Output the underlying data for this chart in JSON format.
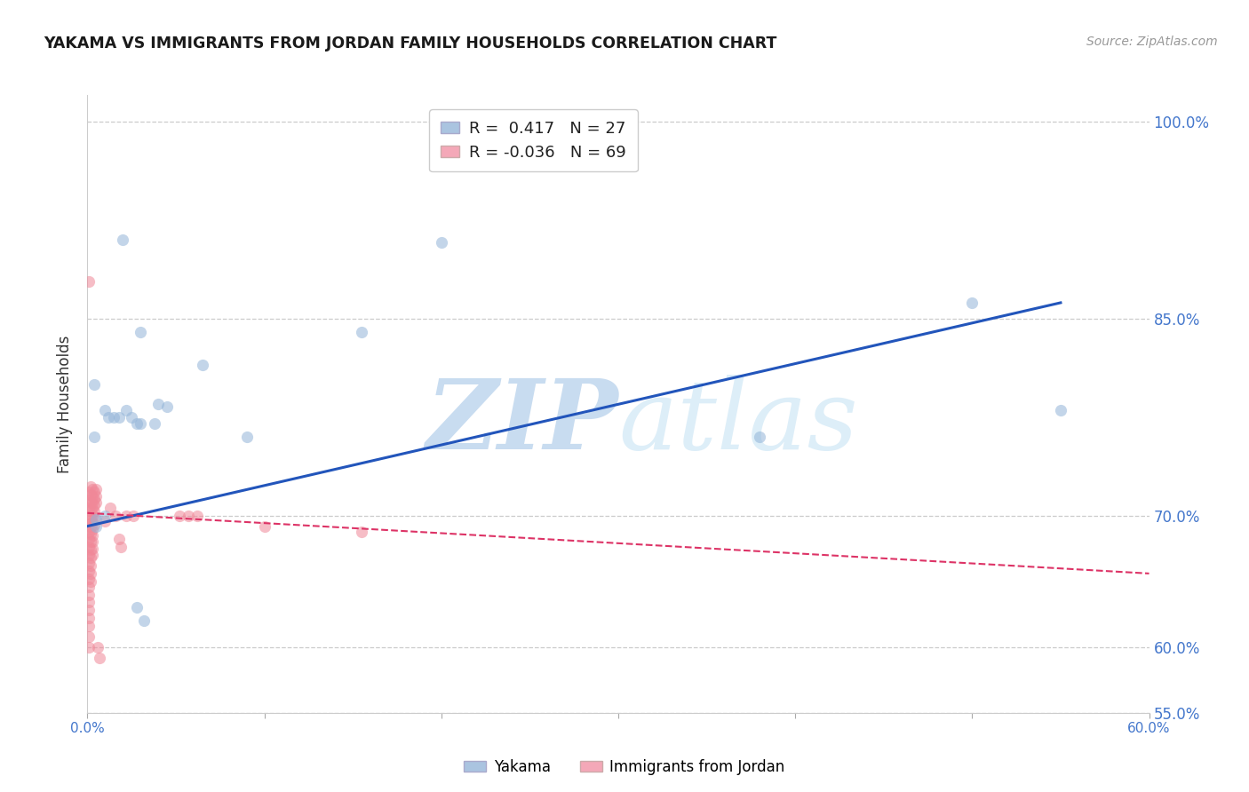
{
  "title": "YAKAMA VS IMMIGRANTS FROM JORDAN FAMILY HOUSEHOLDS CORRELATION CHART",
  "source": "Source: ZipAtlas.com",
  "ylabel": "Family Households",
  "xlim": [
    0.0,
    0.6
  ],
  "ylim": [
    0.58,
    1.02
  ],
  "y_tick_vals": [
    0.55,
    0.6,
    0.7,
    0.85,
    1.0
  ],
  "y_tick_labels": [
    "55.0%",
    "60.0%",
    "70.0%",
    "85.0%",
    "100.0%"
  ],
  "blue_scatter": [
    [
      0.004,
      0.8
    ],
    [
      0.004,
      0.76
    ],
    [
      0.01,
      0.78
    ],
    [
      0.012,
      0.775
    ],
    [
      0.015,
      0.775
    ],
    [
      0.018,
      0.775
    ],
    [
      0.022,
      0.78
    ],
    [
      0.025,
      0.775
    ],
    [
      0.028,
      0.77
    ],
    [
      0.03,
      0.77
    ],
    [
      0.038,
      0.77
    ],
    [
      0.04,
      0.785
    ],
    [
      0.045,
      0.783
    ],
    [
      0.005,
      0.697
    ],
    [
      0.005,
      0.692
    ],
    [
      0.01,
      0.7
    ],
    [
      0.028,
      0.63
    ],
    [
      0.032,
      0.62
    ],
    [
      0.065,
      0.815
    ],
    [
      0.09,
      0.76
    ],
    [
      0.155,
      0.84
    ],
    [
      0.2,
      0.908
    ],
    [
      0.38,
      0.76
    ],
    [
      0.5,
      0.862
    ],
    [
      0.55,
      0.78
    ],
    [
      0.02,
      0.91
    ],
    [
      0.03,
      0.84
    ]
  ],
  "pink_scatter": [
    [
      0.001,
      0.878
    ],
    [
      0.001,
      0.718
    ],
    [
      0.001,
      0.712
    ],
    [
      0.001,
      0.706
    ],
    [
      0.001,
      0.7
    ],
    [
      0.001,
      0.694
    ],
    [
      0.001,
      0.688
    ],
    [
      0.001,
      0.682
    ],
    [
      0.001,
      0.676
    ],
    [
      0.001,
      0.67
    ],
    [
      0.001,
      0.664
    ],
    [
      0.001,
      0.658
    ],
    [
      0.001,
      0.652
    ],
    [
      0.001,
      0.646
    ],
    [
      0.001,
      0.64
    ],
    [
      0.001,
      0.634
    ],
    [
      0.001,
      0.628
    ],
    [
      0.001,
      0.622
    ],
    [
      0.001,
      0.616
    ],
    [
      0.001,
      0.608
    ],
    [
      0.001,
      0.6
    ],
    [
      0.002,
      0.722
    ],
    [
      0.002,
      0.716
    ],
    [
      0.002,
      0.71
    ],
    [
      0.002,
      0.704
    ],
    [
      0.002,
      0.698
    ],
    [
      0.002,
      0.692
    ],
    [
      0.002,
      0.686
    ],
    [
      0.002,
      0.68
    ],
    [
      0.002,
      0.674
    ],
    [
      0.002,
      0.668
    ],
    [
      0.002,
      0.662
    ],
    [
      0.002,
      0.656
    ],
    [
      0.002,
      0.65
    ],
    [
      0.003,
      0.72
    ],
    [
      0.003,
      0.715
    ],
    [
      0.003,
      0.71
    ],
    [
      0.003,
      0.705
    ],
    [
      0.003,
      0.7
    ],
    [
      0.003,
      0.695
    ],
    [
      0.003,
      0.69
    ],
    [
      0.003,
      0.685
    ],
    [
      0.003,
      0.68
    ],
    [
      0.003,
      0.675
    ],
    [
      0.003,
      0.67
    ],
    [
      0.004,
      0.718
    ],
    [
      0.004,
      0.713
    ],
    [
      0.004,
      0.708
    ],
    [
      0.004,
      0.703
    ],
    [
      0.004,
      0.698
    ],
    [
      0.004,
      0.693
    ],
    [
      0.005,
      0.72
    ],
    [
      0.005,
      0.715
    ],
    [
      0.005,
      0.71
    ],
    [
      0.006,
      0.6
    ],
    [
      0.007,
      0.592
    ],
    [
      0.01,
      0.696
    ],
    [
      0.013,
      0.706
    ],
    [
      0.016,
      0.7
    ],
    [
      0.018,
      0.682
    ],
    [
      0.019,
      0.676
    ],
    [
      0.022,
      0.7
    ],
    [
      0.026,
      0.7
    ],
    [
      0.052,
      0.7
    ],
    [
      0.057,
      0.7
    ],
    [
      0.062,
      0.7
    ],
    [
      0.1,
      0.692
    ],
    [
      0.155,
      0.688
    ]
  ],
  "blue_line": [
    [
      0.0,
      0.692
    ],
    [
      0.55,
      0.862
    ]
  ],
  "pink_line": [
    [
      0.0,
      0.702
    ],
    [
      0.6,
      0.656
    ]
  ],
  "scatter_alpha": 0.55,
  "scatter_size": 90,
  "title_color": "#1a1a1a",
  "source_color": "#999999",
  "axis_tick_color": "#4477cc",
  "grid_color": "#cccccc",
  "blue_color": "#92b4d8",
  "pink_color": "#f08898",
  "blue_line_color": "#2255bb",
  "pink_line_color": "#dd3366",
  "background_color": "#ffffff",
  "watermark_color": "#ddeeff",
  "legend_blue_color": "#aac4e0",
  "legend_pink_color": "#f4a8b8"
}
